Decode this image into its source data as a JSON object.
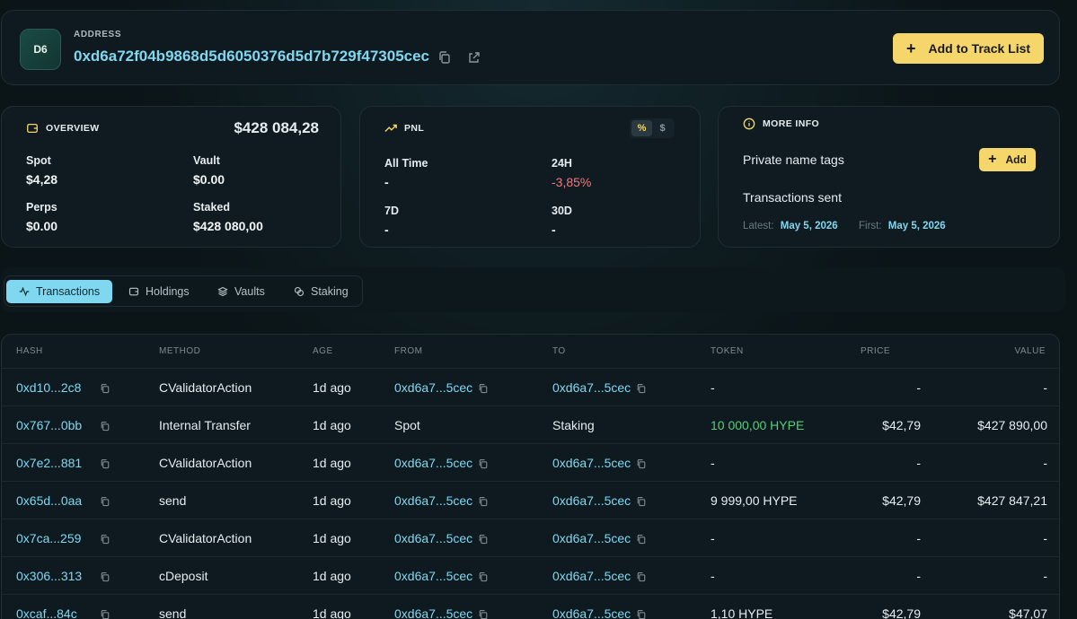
{
  "header": {
    "avatar": "D6",
    "address_label": "ADDRESS",
    "address": "0xd6a72f04b9868d5d6050376d5d7b729f47305cec",
    "track_button": "Add to Track List"
  },
  "overview": {
    "title": "OVERVIEW",
    "total": "$428 084,28",
    "spot_label": "Spot",
    "spot_value": "$4,28",
    "vault_label": "Vault",
    "vault_value": "$0.00",
    "perps_label": "Perps",
    "perps_value": "$0.00",
    "staked_label": "Staked",
    "staked_value": "$428 080,00"
  },
  "pnl": {
    "title": "PNL",
    "toggle": [
      "%",
      "$"
    ],
    "all_time_label": "All Time",
    "all_time_value": "-",
    "h24_label": "24H",
    "h24_value": "-3,85%",
    "d7_label": "7D",
    "d7_value": "-",
    "d30_label": "30D",
    "d30_value": "-"
  },
  "more_info": {
    "title": "MORE INFO",
    "private_tags_label": "Private name tags",
    "add_button": "Add",
    "tx_sent_label": "Transactions sent",
    "latest_label": "Latest:",
    "latest_value": "May 5, 2026",
    "first_label": "First:",
    "first_value": "May 5, 2026"
  },
  "tabs": [
    "Transactions",
    "Holdings",
    "Vaults",
    "Staking"
  ],
  "table": {
    "headers": [
      "HASH",
      "METHOD",
      "AGE",
      "FROM",
      "TO",
      "TOKEN",
      "PRICE",
      "VALUE"
    ],
    "rows": [
      {
        "hash": "0xd10...2c8",
        "method": "CValidatorAction",
        "age": "1d ago",
        "from": "0xd6a7...5cec",
        "to": "0xd6a7...5cec",
        "token": "-",
        "price": "-",
        "value": "-"
      },
      {
        "hash": "0x767...0bb",
        "method": "Internal Transfer",
        "age": "1d ago",
        "from": "Spot",
        "to": "Staking",
        "token": "10 000,00 HYPE",
        "price": "$42,79",
        "value": "$427 890,00"
      },
      {
        "hash": "0x7e2...881",
        "method": "CValidatorAction",
        "age": "1d ago",
        "from": "0xd6a7...5cec",
        "to": "0xd6a7...5cec",
        "token": "-",
        "price": "-",
        "value": "-"
      },
      {
        "hash": "0x65d...0aa",
        "method": "send",
        "age": "1d ago",
        "from": "0xd6a7...5cec",
        "to": "0xd6a7...5cec",
        "token": "9 999,00 HYPE",
        "price": "$42,79",
        "value": "$427 847,21"
      },
      {
        "hash": "0x7ca...259",
        "method": "CValidatorAction",
        "age": "1d ago",
        "from": "0xd6a7...5cec",
        "to": "0xd6a7...5cec",
        "token": "-",
        "price": "-",
        "value": "-"
      },
      {
        "hash": "0x306...313",
        "method": "cDeposit",
        "age": "1d ago",
        "from": "0xd6a7...5cec",
        "to": "0xd6a7...5cec",
        "token": "-",
        "price": "-",
        "value": "-"
      },
      {
        "hash": "0xcaf...84c",
        "method": "send",
        "age": "1d ago",
        "from": "0xd6a7...5cec",
        "to": "0xd6a7...5cec",
        "token": "1,10 HYPE",
        "price": "$42,79",
        "value": "$47,07"
      }
    ]
  },
  "colors": {
    "accent": "#7fd8f0",
    "button": "#f5d66a",
    "positive": "#4fd27a",
    "negative": "#f07a82"
  },
  "icons": [
    "copy-icon",
    "external-link-icon",
    "plus-icon",
    "wallet-icon",
    "trend-icon",
    "info-icon",
    "activity-icon",
    "layers-icon"
  ]
}
